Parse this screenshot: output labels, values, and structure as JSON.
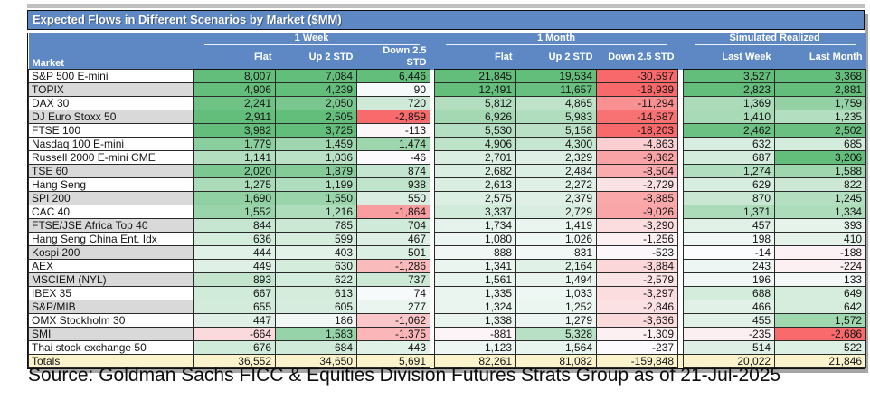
{
  "chart_data": {
    "type": "table",
    "title": "Expected Flows in Different Scenarios by Market ($MM)",
    "market_column_header": "Market",
    "column_groups": [
      {
        "label": "1 Week",
        "columns": [
          "Flat",
          "Up 2 STD",
          "Down 2.5 STD"
        ]
      },
      {
        "label": "1 Month",
        "columns": [
          "Flat",
          "Up 2 STD",
          "Down 2.5 STD"
        ]
      },
      {
        "label": "Simulated Realized",
        "columns": [
          "Last Week",
          "Last Month"
        ]
      }
    ],
    "rows": [
      {
        "market": "S&P 500 E-mini",
        "values": [
          "8,007",
          "7,084",
          "6,446",
          "21,845",
          "19,534",
          "-30,597",
          "3,527",
          "3,368"
        ]
      },
      {
        "market": "TOPIX",
        "values": [
          "4,906",
          "4,239",
          "90",
          "12,491",
          "11,657",
          "-18,939",
          "2,823",
          "2,881"
        ]
      },
      {
        "market": "DAX 30",
        "values": [
          "2,241",
          "2,050",
          "720",
          "5,812",
          "4,865",
          "-11,294",
          "1,369",
          "1,759"
        ]
      },
      {
        "market": "DJ Euro Stoxx 50",
        "values": [
          "2,911",
          "2,505",
          "-2,859",
          "6,926",
          "5,983",
          "-14,587",
          "1,410",
          "1,235"
        ]
      },
      {
        "market": "FTSE 100",
        "values": [
          "3,982",
          "3,725",
          "-113",
          "5,530",
          "5,158",
          "-18,203",
          "2,462",
          "2,502"
        ]
      },
      {
        "market": "Nasdaq 100 E-mini",
        "values": [
          "1,779",
          "1,459",
          "1,474",
          "4,906",
          "4,300",
          "-4,863",
          "632",
          "685"
        ]
      },
      {
        "market": "Russell 2000 E-mini CME",
        "values": [
          "1,141",
          "1,036",
          "-46",
          "2,701",
          "2,329",
          "-9,362",
          "687",
          "3,206"
        ]
      },
      {
        "market": "TSE 60",
        "values": [
          "2,020",
          "1,879",
          "874",
          "2,682",
          "2,484",
          "-8,504",
          "1,274",
          "1,588"
        ]
      },
      {
        "market": "Hang Seng",
        "values": [
          "1,275",
          "1,199",
          "938",
          "2,613",
          "2,272",
          "-2,729",
          "629",
          "822"
        ]
      },
      {
        "market": "SPI 200",
        "values": [
          "1,690",
          "1,550",
          "550",
          "2,575",
          "2,379",
          "-8,885",
          "870",
          "1,245"
        ]
      },
      {
        "market": "CAC 40",
        "values": [
          "1,552",
          "1,216",
          "-1,864",
          "3,337",
          "2,729",
          "-9,026",
          "1,371",
          "1,334"
        ]
      },
      {
        "market": "FTSE/JSE Africa Top 40",
        "values": [
          "844",
          "785",
          "704",
          "1,734",
          "1,419",
          "-3,290",
          "457",
          "393"
        ]
      },
      {
        "market": "Hang Seng China Ent. Idx",
        "values": [
          "636",
          "599",
          "467",
          "1,080",
          "1,026",
          "-1,256",
          "198",
          "410"
        ]
      },
      {
        "market": "Kospi 200",
        "values": [
          "444",
          "403",
          "501",
          "888",
          "831",
          "-523",
          "-14",
          "-188"
        ]
      },
      {
        "market": "AEX",
        "values": [
          "449",
          "630",
          "-1,286",
          "1,341",
          "2,164",
          "-3,884",
          "243",
          "-224"
        ]
      },
      {
        "market": "MSCIEM (NYL)",
        "values": [
          "893",
          "622",
          "737",
          "1,561",
          "1,494",
          "-2,579",
          "196",
          "133"
        ]
      },
      {
        "market": "IBEX 35",
        "values": [
          "667",
          "613",
          "74",
          "1,335",
          "1,033",
          "-3,297",
          "688",
          "649"
        ]
      },
      {
        "market": "S&P/MIB",
        "values": [
          "655",
          "605",
          "277",
          "1,324",
          "1,252",
          "-2,846",
          "466",
          "642"
        ]
      },
      {
        "market": "OMX Stockholm 30",
        "values": [
          "447",
          "186",
          "-1,062",
          "1,338",
          "1,279",
          "-3,636",
          "455",
          "1,572"
        ]
      },
      {
        "market": "SMI",
        "values": [
          "-664",
          "1,583",
          "-1,375",
          "-881",
          "5,328",
          "-1,309",
          "-235",
          "-2,686"
        ]
      },
      {
        "market": "Thai stock exchange 50",
        "values": [
          "676",
          "684",
          "443",
          "1,123",
          "1,564",
          "-237",
          "514",
          "522"
        ]
      }
    ],
    "shaded_market_rows": [
      1,
      3,
      7,
      9,
      11,
      13,
      15,
      17,
      19
    ],
    "totals": {
      "label": "Totals",
      "values": [
        "36,552",
        "34,650",
        "5,691",
        "82,261",
        "81,082",
        "-159,848",
        "20,022",
        "21,846"
      ]
    }
  },
  "source_note": "Source: Goldman Sachs FICC & Equities Division Futures Strats Group as of 21-Jul-2025",
  "colors": {
    "header_blue": "#5e88c4",
    "heatmap_max_green": "#63be7b",
    "heatmap_min_red": "#f8696b",
    "heatmap_mid_white": "#fcfcff",
    "totals_bg_yellow": "#faf3cc",
    "market_alt_gray": "#d9d9d9",
    "shadow_gray": "#a6a6a6"
  }
}
